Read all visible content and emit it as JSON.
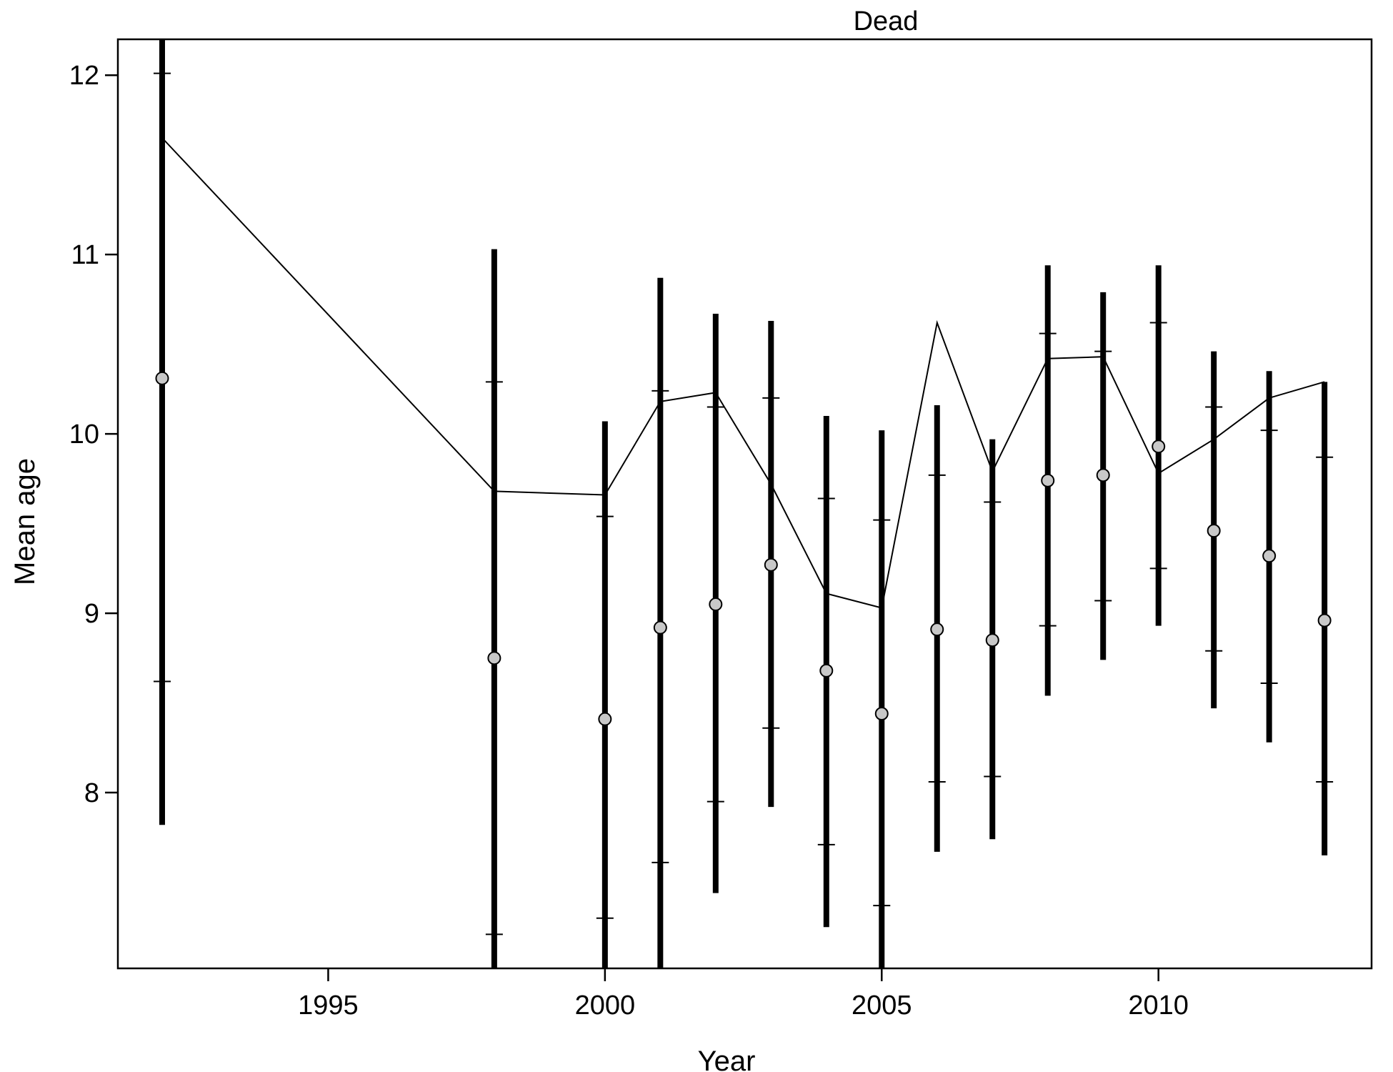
{
  "chart_data": {
    "type": "line",
    "title": "Dead",
    "xlabel": "Year",
    "ylabel": "Mean age",
    "xlim": [
      1991.2,
      2013.85
    ],
    "ylim": [
      7.02,
      12.2
    ],
    "xticks": [
      1995,
      2000,
      2005,
      2010
    ],
    "yticks": [
      8,
      9,
      10,
      11,
      12
    ],
    "grid": false,
    "legend": "none",
    "colors": {
      "line": "#000000",
      "errorbar": "#000000",
      "point_fill": "#c8c8c8",
      "point_stroke": "#000000"
    },
    "series": [
      {
        "kind": "line",
        "x": [
          1992,
          1998,
          2000,
          2001,
          2002,
          2003,
          2004,
          2005,
          2006,
          2007,
          2008,
          2009,
          2010,
          2011,
          2012,
          2013
        ],
        "y": [
          11.65,
          9.68,
          9.66,
          10.18,
          10.23,
          9.72,
          9.11,
          9.03,
          10.62,
          9.79,
          10.42,
          10.43,
          9.78,
          9.97,
          10.2,
          10.29
        ]
      },
      {
        "kind": "points_with_intervals",
        "x": [
          1992,
          1998,
          2000,
          2001,
          2002,
          2003,
          2004,
          2005,
          2006,
          2007,
          2008,
          2009,
          2010,
          2011,
          2012,
          2013
        ],
        "y": [
          10.31,
          8.75,
          8.41,
          8.92,
          9.05,
          9.27,
          8.68,
          8.44,
          8.91,
          8.85,
          9.74,
          9.77,
          9.93,
          9.46,
          9.32,
          8.96
        ],
        "outer_low": [
          7.82,
          6.8,
          6.8,
          6.8,
          7.44,
          7.92,
          7.25,
          6.8,
          7.67,
          7.74,
          8.54,
          8.74,
          8.93,
          8.47,
          8.28,
          7.65
        ],
        "outer_high": [
          12.4,
          11.03,
          10.07,
          10.87,
          10.67,
          10.63,
          10.1,
          10.02,
          10.16,
          9.97,
          10.94,
          10.79,
          10.94,
          10.46,
          10.35,
          10.29
        ],
        "inner_low": [
          8.62,
          7.21,
          7.3,
          7.61,
          7.95,
          8.36,
          7.71,
          7.37,
          8.06,
          8.09,
          8.93,
          9.07,
          9.25,
          8.79,
          8.61,
          8.06
        ],
        "inner_high": [
          12.01,
          10.29,
          9.54,
          10.24,
          10.15,
          10.2,
          9.64,
          9.52,
          9.77,
          9.62,
          10.56,
          10.46,
          10.62,
          10.15,
          10.02,
          9.87
        ]
      }
    ]
  }
}
